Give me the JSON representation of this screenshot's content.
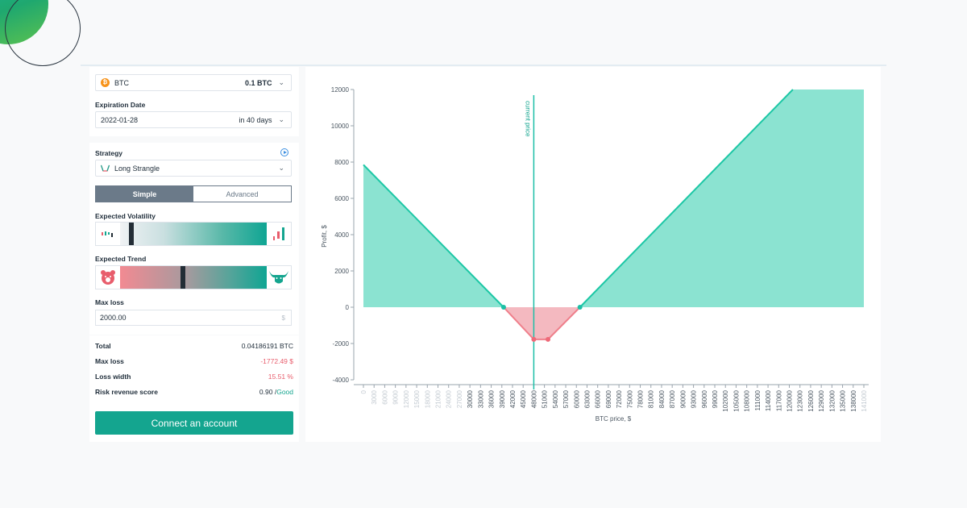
{
  "asset": {
    "symbol": "BTC",
    "amount": "0.1 BTC"
  },
  "expiration": {
    "label": "Expiration Date",
    "date": "2022-01-28",
    "relative": "in 40 days"
  },
  "strategy": {
    "label": "Strategy",
    "value": "Long Strangle"
  },
  "mode_tabs": {
    "simple": "Simple",
    "advanced": "Advanced",
    "active": "simple"
  },
  "volatility": {
    "label": "Expected Volatility",
    "level": 0.06
  },
  "trend": {
    "label": "Expected Trend",
    "level": 0.41
  },
  "max_loss_input": {
    "label": "Max loss",
    "value": "2000.00",
    "unit": "$"
  },
  "summary": {
    "total_label": "Total",
    "total_value": "0.04186191 BTC",
    "max_loss_label": "Max loss",
    "max_loss_value": "-1772.49 $",
    "loss_width_label": "Loss width",
    "loss_width_value": "15.51 %",
    "risk_label": "Risk revenue score",
    "risk_value": "0.90 /",
    "risk_rating": "Good"
  },
  "connect_button": "Connect an account",
  "colors": {
    "accent": "#14a58f",
    "profit_fill": "#8be3d1",
    "loss_fill": "#f4b9c0",
    "loss_line": "#ef7f8b"
  },
  "chart_data": {
    "type": "area",
    "xlabel": "BTC price, $",
    "ylabel": "Profit, $",
    "annotation": "current price",
    "current_price": 48000,
    "xlim": [
      0,
      141000
    ],
    "ylim": [
      -4000,
      12000
    ],
    "y_ticks": [
      12000,
      10000,
      8000,
      6000,
      4000,
      2000,
      0,
      -2000,
      -4000
    ],
    "x_ticks": [
      0,
      3000,
      6000,
      9000,
      12000,
      15000,
      18000,
      21000,
      24000,
      27000,
      30000,
      33000,
      36000,
      39000,
      42000,
      45000,
      48000,
      51000,
      54000,
      57000,
      60000,
      63000,
      66000,
      69000,
      72000,
      75000,
      78000,
      81000,
      84000,
      87000,
      90000,
      93000,
      96000,
      99000,
      102000,
      105000,
      108000,
      111000,
      114000,
      117000,
      120000,
      123000,
      126000,
      129000,
      132000,
      135000,
      138000,
      141000
    ],
    "faded_x_ticks": [
      0,
      3000,
      6000,
      9000,
      12000,
      15000,
      18000,
      21000,
      24000,
      27000,
      141000
    ],
    "series": [
      {
        "x": [
          0,
          39500,
          48000,
          52000,
          61000,
          121000,
          141000
        ],
        "y": [
          7850,
          0,
          -1772,
          -1772,
          0,
          12000,
          12000
        ]
      }
    ],
    "breakeven_points": [
      39500,
      61000
    ],
    "grid": false
  }
}
